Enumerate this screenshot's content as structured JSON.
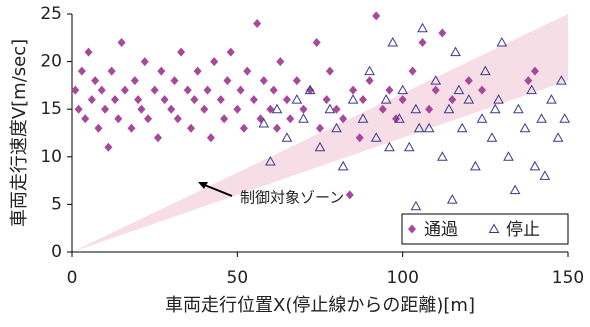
{
  "chart_data": {
    "type": "scatter",
    "x_label": "車両走行位置X(停止線からの距離)[m]",
    "y_label": "車両走行速度V[m/sec]",
    "xlim": [
      0,
      150
    ],
    "xticks": [
      0,
      50,
      100,
      150
    ],
    "ylim": [
      0,
      25
    ],
    "yticks": [
      0,
      5,
      10,
      15,
      20,
      25
    ],
    "annotation": "制御対象ゾーン",
    "zone": {
      "color": "#f7dde6",
      "x": [
        0,
        150,
        150
      ],
      "y": [
        0,
        25,
        18
      ]
    },
    "series": [
      {
        "name": "通過",
        "color": "#a8489a",
        "marker": "diamond",
        "x": [
          1,
          2,
          3,
          4,
          5,
          6,
          7,
          8,
          9,
          10,
          11,
          12,
          13,
          14,
          15,
          16,
          18,
          19,
          20,
          21,
          22,
          23,
          25,
          26,
          27,
          28,
          30,
          31,
          32,
          33,
          35,
          36,
          37,
          38,
          40,
          41,
          42,
          43,
          45,
          46,
          47,
          48,
          50,
          51,
          52,
          53,
          55,
          56,
          57,
          58,
          60,
          61,
          62,
          63,
          65,
          66,
          68,
          70,
          72,
          74,
          75,
          77,
          78,
          80,
          82,
          84,
          85,
          87,
          88,
          90,
          92,
          94,
          96,
          98,
          100,
          103,
          106,
          108,
          110,
          112,
          115,
          120,
          140,
          138,
          124
        ],
        "y": [
          17,
          15,
          19,
          14,
          21,
          16,
          18,
          13,
          17,
          15,
          11,
          19,
          16,
          14,
          22,
          17,
          13,
          18,
          16,
          15,
          20,
          14,
          17,
          12,
          19,
          16,
          15,
          18,
          14,
          21,
          17,
          13,
          16,
          19,
          15,
          17,
          12,
          20,
          16,
          14,
          18,
          21,
          15,
          17,
          13,
          19,
          16,
          24,
          14,
          18,
          15,
          17,
          13,
          20,
          16,
          14,
          18,
          15,
          17,
          22,
          13,
          16,
          19,
          15,
          14,
          6,
          17,
          12,
          16,
          18,
          24.8,
          15,
          17,
          14,
          16,
          19,
          22,
          15,
          17,
          23,
          16,
          18,
          19,
          18,
          17
        ]
      },
      {
        "name": "停止",
        "color": "#3a3a8a",
        "marker": "triangle",
        "x": [
          60,
          58,
          62,
          65,
          68,
          70,
          72,
          75,
          78,
          80,
          82,
          85,
          88,
          90,
          92,
          95,
          97,
          99,
          100,
          102,
          104,
          106,
          108,
          110,
          112,
          114,
          116,
          118,
          120,
          122,
          124,
          125,
          127,
          129,
          130,
          132,
          134,
          135,
          137,
          139,
          140,
          142,
          143,
          145,
          147,
          148,
          149,
          104,
          115,
          105,
          128,
          117,
          96
        ],
        "y": [
          9.5,
          13.5,
          15,
          12,
          16,
          14,
          17,
          11,
          15,
          13,
          9,
          16,
          14,
          19,
          12,
          16,
          22,
          14,
          17,
          11,
          15,
          23.5,
          13,
          18,
          10,
          15,
          21,
          13,
          16,
          9,
          14,
          19,
          12,
          16,
          22,
          10,
          6.5,
          15,
          13,
          17,
          9,
          14,
          8,
          16,
          12,
          18,
          14,
          4.8,
          5.5,
          13,
          15,
          17,
          11
        ]
      }
    ]
  }
}
